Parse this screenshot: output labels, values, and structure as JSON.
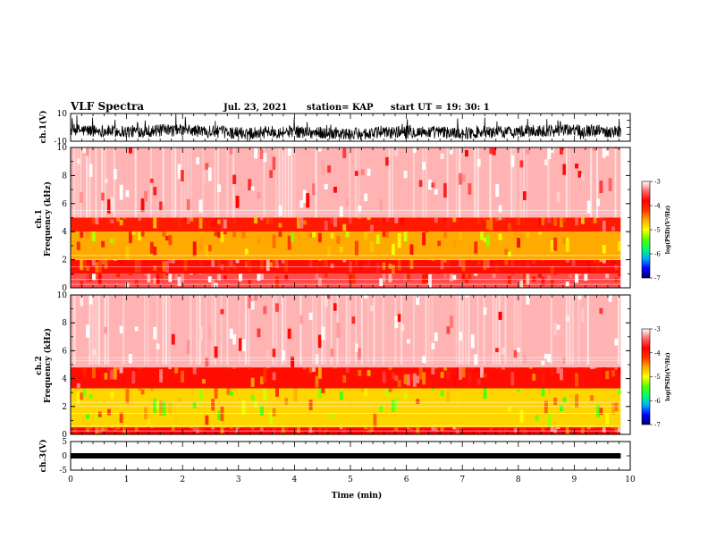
{
  "header": {
    "title": "VLF Spectra",
    "date": "Jul. 23, 2021",
    "station": "station= KAP",
    "start": "start UT =   19: 30: 1"
  },
  "colorbar": {
    "label": "log(PSD)(V²/Hz)",
    "ticks": [
      "-3",
      "-4",
      "-5",
      "-6",
      "-7"
    ],
    "range": [
      -7,
      -3
    ],
    "colors": [
      "#000066",
      "#0000ff",
      "#00aaff",
      "#00ff66",
      "#55ff00",
      "#ffff00",
      "#ffaa00",
      "#ff3300",
      "#ff0000",
      "#ff6666",
      "#ffffff"
    ]
  },
  "chart_data": [
    {
      "type": "line",
      "panel": "ch1-waveform",
      "ylabel": "ch.1(V)",
      "ylim": [
        -10,
        10
      ],
      "ytick_labels": [
        "10",
        "-10"
      ],
      "description_series": [
        {
          "x": [
            0,
            1,
            2,
            3,
            4,
            5,
            6,
            7,
            8,
            9,
            9.8
          ],
          "y": [
            -2,
            -3,
            -2,
            -4,
            -3,
            -5,
            -3,
            -4,
            -3,
            -2,
            -3
          ]
        }
      ]
    },
    {
      "type": "heatmap",
      "panel": "ch1-spectrogram",
      "ylabel": "ch.1\nFrequency (kHz)",
      "ylim": [
        0,
        10
      ],
      "ytick_labels": [
        "0",
        "2",
        "4",
        "6",
        "8",
        "10"
      ],
      "xlim": [
        0,
        9.83
      ],
      "colorbar_range": [
        -7,
        -3
      ],
      "band_structure": [
        {
          "freq_khz": [
            5.0,
            10.0
          ],
          "log_psd": -3.2
        },
        {
          "freq_khz": [
            4.0,
            5.0
          ],
          "log_psd": -4.0
        },
        {
          "freq_khz": [
            2.0,
            4.0
          ],
          "log_psd": -4.6
        },
        {
          "freq_khz": [
            1.0,
            2.0
          ],
          "log_psd": -3.9
        },
        {
          "freq_khz": [
            0.0,
            1.0
          ],
          "log_psd": -3.5
        }
      ]
    },
    {
      "type": "heatmap",
      "panel": "ch2-spectrogram",
      "ylabel": "ch.2\nFrequency (kHz)",
      "ylim": [
        0,
        10
      ],
      "ytick_labels": [
        "0",
        "2",
        "4",
        "6",
        "8",
        "10"
      ],
      "xlim": [
        0,
        9.83
      ],
      "colorbar_range": [
        -7,
        -3
      ],
      "band_structure": [
        {
          "freq_khz": [
            4.8,
            10.0
          ],
          "log_psd": -3.2
        },
        {
          "freq_khz": [
            3.3,
            4.8
          ],
          "log_psd": -3.9
        },
        {
          "freq_khz": [
            0.5,
            3.3
          ],
          "log_psd": -4.8
        },
        {
          "freq_khz": [
            0.0,
            0.5
          ],
          "log_psd": -3.8
        }
      ]
    },
    {
      "type": "line",
      "panel": "ch3-waveform",
      "ylabel": "ch.3(V)",
      "ylim": [
        -5,
        5
      ],
      "ytick_labels": [
        "5",
        "0",
        "-5"
      ],
      "series": [
        {
          "x": [
            0,
            9.83
          ],
          "y": [
            0,
            0
          ]
        }
      ]
    }
  ],
  "xaxis": {
    "label": "Time (min)",
    "tick_labels": [
      "0",
      "1",
      "2",
      "3",
      "4",
      "5",
      "6",
      "7",
      "8",
      "9",
      "10"
    ],
    "xlim": [
      0,
      10
    ]
  }
}
